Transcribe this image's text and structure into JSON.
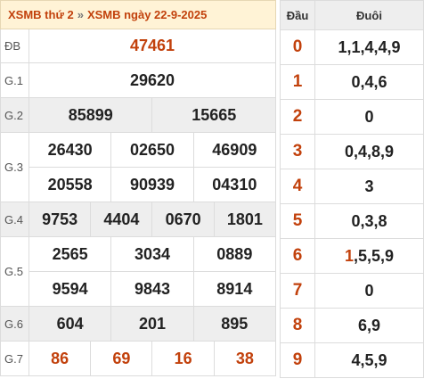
{
  "header": {
    "left_link": "XSMB thứ 2",
    "separator": "»",
    "right_link": "XSMB ngày 22-9-2025"
  },
  "prizes": {
    "db": {
      "label": "ĐB",
      "numbers": [
        "47461"
      ]
    },
    "g1": {
      "label": "G.1",
      "numbers": [
        "29620"
      ]
    },
    "g2": {
      "label": "G.2",
      "numbers": [
        "85899",
        "15665"
      ]
    },
    "g3": {
      "label": "G.3",
      "numbers": [
        "26430",
        "02650",
        "46909",
        "20558",
        "90939",
        "04310"
      ]
    },
    "g4": {
      "label": "G.4",
      "numbers": [
        "9753",
        "4404",
        "0670",
        "1801"
      ]
    },
    "g5": {
      "label": "G.5",
      "numbers": [
        "2565",
        "3034",
        "0889",
        "9594",
        "9843",
        "8914"
      ]
    },
    "g6": {
      "label": "G.6",
      "numbers": [
        "604",
        "201",
        "895"
      ]
    },
    "g7": {
      "label": "G.7",
      "numbers": [
        "86",
        "69",
        "16",
        "38"
      ]
    }
  },
  "dau_duoi": {
    "head_label": "Đầu",
    "tail_label": "Đuôi",
    "rows": [
      {
        "dau": "0",
        "duoi": "1,1,4,4,9"
      },
      {
        "dau": "1",
        "duoi": "0,4,6"
      },
      {
        "dau": "2",
        "duoi": "0"
      },
      {
        "dau": "3",
        "duoi": "0,4,8,9"
      },
      {
        "dau": "4",
        "duoi": "3"
      },
      {
        "dau": "5",
        "duoi": "0,3,8"
      },
      {
        "dau": "6",
        "duoi_highlight": "1",
        "duoi_rest": ",5,5,9"
      },
      {
        "dau": "7",
        "duoi": "0"
      },
      {
        "dau": "8",
        "duoi": "6,9"
      },
      {
        "dau": "9",
        "duoi": "4,5,9"
      }
    ]
  },
  "colors": {
    "accent": "#c2410c",
    "header_bg": "#fff3d6",
    "gray_row": "#eeeeee"
  }
}
